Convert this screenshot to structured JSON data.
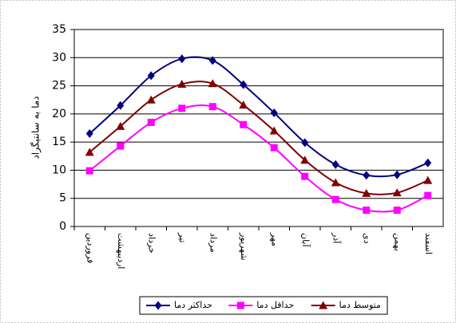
{
  "chart_data": {
    "type": "line",
    "y_label": "دما به سانتیگراد",
    "categories": [
      "فروردین",
      "اردیبهشت",
      "خرداد",
      "تیر",
      "مرداد",
      "شهریور",
      "مهر",
      "آبان",
      "آذر",
      "دی",
      "بهمن",
      "اسفند"
    ],
    "series": [
      {
        "name": "حداکثر دما",
        "color": "#000080",
        "marker": "diamond",
        "values": [
          16.5,
          21.5,
          26.8,
          29.8,
          29.5,
          25.2,
          20.2,
          14.9,
          11,
          9.1,
          9.2,
          11.3
        ]
      },
      {
        "name": "حداقل دما",
        "color": "#ff00ff",
        "marker": "square",
        "values": [
          9.9,
          14.3,
          18.5,
          21,
          21.3,
          18.1,
          14,
          8.9,
          4.8,
          2.9,
          2.9,
          5.5
        ]
      },
      {
        "name": "متوسط دما",
        "color": "#800000",
        "marker": "triangle",
        "values": [
          13.2,
          17.8,
          22.5,
          25.3,
          25.4,
          21.6,
          17,
          11.8,
          7.8,
          5.9,
          6,
          8.2
        ]
      }
    ],
    "ylim": [
      0,
      35
    ],
    "yticks": [
      0,
      5,
      10,
      15,
      20,
      25,
      30,
      35
    ],
    "grid": true,
    "smooth": true,
    "legend": "bottom"
  }
}
